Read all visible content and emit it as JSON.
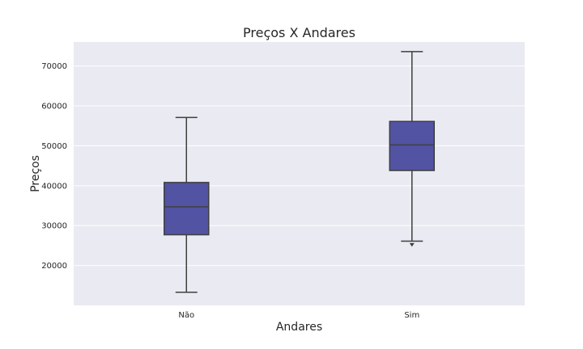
{
  "chart_data": {
    "type": "box",
    "title": "Preços X Andares",
    "xlabel": "Andares",
    "ylabel": "Preços",
    "categories": [
      "Não",
      "Sim"
    ],
    "boxes": [
      {
        "category": "Não",
        "whisker_low": 13300,
        "q1": 27700,
        "median": 34700,
        "q3": 40800,
        "whisker_high": 57100,
        "outliers": []
      },
      {
        "category": "Sim",
        "whisker_low": 26100,
        "q1": 43800,
        "median": 50200,
        "q3": 56100,
        "whisker_high": 73600,
        "outliers": [
          25300
        ]
      }
    ],
    "yticks": [
      20000,
      30000,
      40000,
      50000,
      60000,
      70000
    ],
    "ylim": [
      10000,
      76000
    ],
    "grid": true,
    "colors": {
      "box_fill": "#5253a3",
      "line": "#3f3f3f",
      "plot_bg": "#eaeaf2",
      "grid": "#ffffff"
    }
  }
}
